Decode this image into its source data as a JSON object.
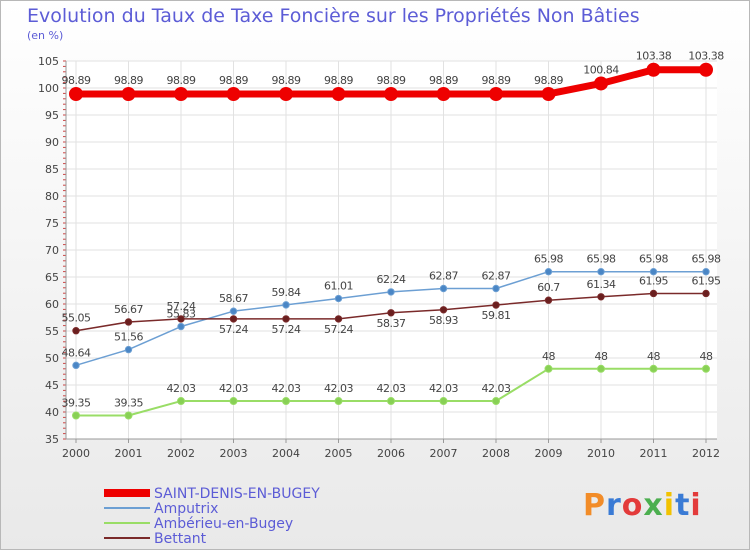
{
  "title": "Evolution du Taux de Taxe Foncière sur les Propriétés Non Bâties",
  "unit": "(en %)",
  "logo": {
    "text": "Proxiti",
    "colors": [
      "#f28c28",
      "#3a7bd5",
      "#e33b3b",
      "#4caf50",
      "#f2c200",
      "#3a7bd5",
      "#e33b3b"
    ]
  },
  "chart_data": {
    "type": "line",
    "x": [
      2000,
      2001,
      2002,
      2003,
      2004,
      2005,
      2006,
      2007,
      2008,
      2009,
      2010,
      2011,
      2012
    ],
    "ylim": [
      35,
      105
    ],
    "yticks": [
      35,
      40,
      45,
      50,
      55,
      60,
      65,
      70,
      75,
      80,
      85,
      90,
      95,
      100,
      105
    ],
    "grid": true,
    "legend": "bottom-left",
    "series": [
      {
        "name": "SAINT-DENIS-EN-BUGEY",
        "color": "#ee0000",
        "values": [
          98.89,
          98.89,
          98.89,
          98.89,
          98.89,
          98.89,
          98.89,
          98.89,
          98.89,
          98.89,
          100.84,
          103.38,
          103.38
        ],
        "labels": [
          "98.89",
          "98.89",
          "98.89",
          "98.89",
          "98.89",
          "98.89",
          "98.89",
          "98.89",
          "98.89",
          "98.89",
          "100.84",
          "103.38",
          "103.38"
        ]
      },
      {
        "name": "Amputrix",
        "color": "#6c9fd3",
        "values": [
          48.64,
          51.56,
          55.83,
          58.67,
          59.84,
          61.01,
          62.24,
          62.87,
          62.87,
          65.98,
          65.98,
          65.98,
          65.98
        ],
        "labels": [
          "48.64",
          "51.56",
          "55.83",
          "58.67",
          "59.84",
          "61.01",
          "62.24",
          "62.87",
          "62.87",
          "65.98",
          "65.98",
          "65.98",
          "65.98"
        ]
      },
      {
        "name": "Ambérieu-en-Bugey",
        "color": "#99dd66",
        "values": [
          39.35,
          39.35,
          42.03,
          42.03,
          42.03,
          42.03,
          42.03,
          42.03,
          42.03,
          48,
          48,
          48,
          48
        ],
        "labels": [
          "39.35",
          "39.35",
          "42.03",
          "42.03",
          "42.03",
          "42.03",
          "42.03",
          "42.03",
          "42.03",
          "48",
          "48",
          "48",
          "48"
        ]
      },
      {
        "name": "Bettant",
        "color": "#7a2a2a",
        "values": [
          55.05,
          56.67,
          57.24,
          57.24,
          57.24,
          57.24,
          58.37,
          58.93,
          59.81,
          60.7,
          61.34,
          61.95,
          61.95
        ],
        "labels": [
          "55.05",
          "56.67",
          "57.24",
          "57.24",
          "57.24",
          "57.24",
          "58.37",
          "58.93",
          "59.81",
          "60.7",
          "61.34",
          "61.95",
          "61.95"
        ]
      }
    ]
  }
}
